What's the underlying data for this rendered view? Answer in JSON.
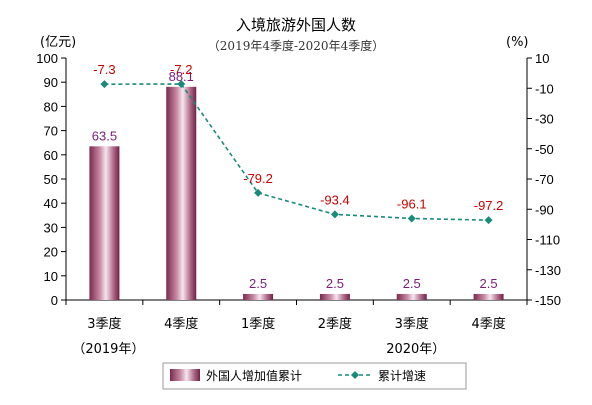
{
  "chart_data": {
    "type": "bar",
    "title": "入境旅游外国人数",
    "subtitle": "（2019年4季度-2020年4季度）",
    "left_unit": "(亿元)",
    "right_unit": "(%)",
    "categories": [
      "3季度",
      "4季度",
      "1季度",
      "2季度",
      "3季度",
      "4季度"
    ],
    "year_labels": [
      {
        "text": "（2019年）",
        "category_index": 0
      },
      {
        "text": "2020年）",
        "category_index": 4
      }
    ],
    "series": [
      {
        "name": "外国人增加值累计",
        "type": "bar",
        "axis": "left",
        "values": [
          63.5,
          88.1,
          2.5,
          2.5,
          2.5,
          2.5
        ],
        "labels": [
          "63.5",
          "88.1",
          "2.5",
          "2.5",
          "2.5",
          "2.5"
        ]
      },
      {
        "name": "累计增速",
        "type": "line",
        "axis": "right",
        "values": [
          -7.3,
          -7.2,
          -79.2,
          -93.4,
          -96.1,
          -97.2
        ],
        "labels": [
          "-7.3",
          "-7.2",
          "-79.2",
          "-93.4",
          "-96.1",
          "-97.2"
        ]
      }
    ],
    "left_axis": {
      "min": 0,
      "max": 100,
      "step": 10
    },
    "right_axis": {
      "min": -150,
      "max": 10,
      "step": 20
    },
    "grid": false,
    "legend_position": "bottom",
    "colors": {
      "bar_dark": "#7a2a4e",
      "bar_light": "#f5e6ee",
      "line": "#1a8a7a",
      "bar_label": "#7a1e7a",
      "line_label": "#cc0000"
    }
  }
}
